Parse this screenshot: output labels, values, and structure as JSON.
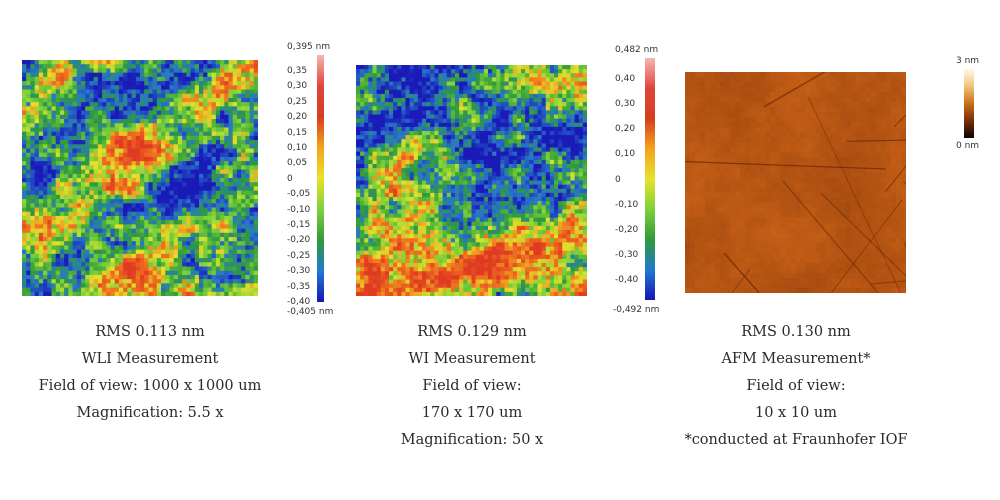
{
  "panels": [
    {
      "colormap": "rainbow",
      "scale_max": "0,395 nm",
      "scale_min": "-0,405 nm",
      "ticks": [
        "0,35",
        "0,30",
        "0,25",
        "0,20",
        "0,15",
        "0,10",
        "0,05",
        "0",
        "-0,05",
        "-0,10",
        "-0,15",
        "-0,20",
        "-0,25",
        "-0,30",
        "-0,35",
        "-0,40"
      ],
      "caption": [
        "RMS 0.113 nm",
        "WLI Measurement",
        "Field of view: 1000 x 1000 um",
        "Magnification: 5.5 x"
      ]
    },
    {
      "colormap": "rainbow",
      "scale_max": "0,482 nm",
      "scale_min": "-0,492 nm",
      "ticks": [
        "0,40",
        "0,30",
        "0,20",
        "0,10",
        "0",
        "-0,10",
        "-0,20",
        "-0,30",
        "-0,40"
      ],
      "caption": [
        "RMS 0.129 nm",
        "WI Measurement",
        "Field of view:",
        "170 x 170 um",
        "Magnification: 50 x"
      ]
    },
    {
      "colormap": "afm-copper",
      "scale_max": "3 nm",
      "scale_min": "0 nm",
      "ticks": [],
      "caption": [
        "RMS 0.130 nm",
        "AFM Measurement*",
        "Field of view:",
        "10 x 10 um",
        "*conducted at Fraunhofer IOF"
      ]
    }
  ],
  "colors": {
    "rainbow": [
      "#1a1ab8",
      "#2f9a3a",
      "#7ed13a",
      "#e6e02a",
      "#f07a1f",
      "#e03a22"
    ],
    "afm": [
      "#1c0a02",
      "#7a2e08",
      "#b5570f",
      "#e0a24a",
      "#fff2d8"
    ]
  }
}
